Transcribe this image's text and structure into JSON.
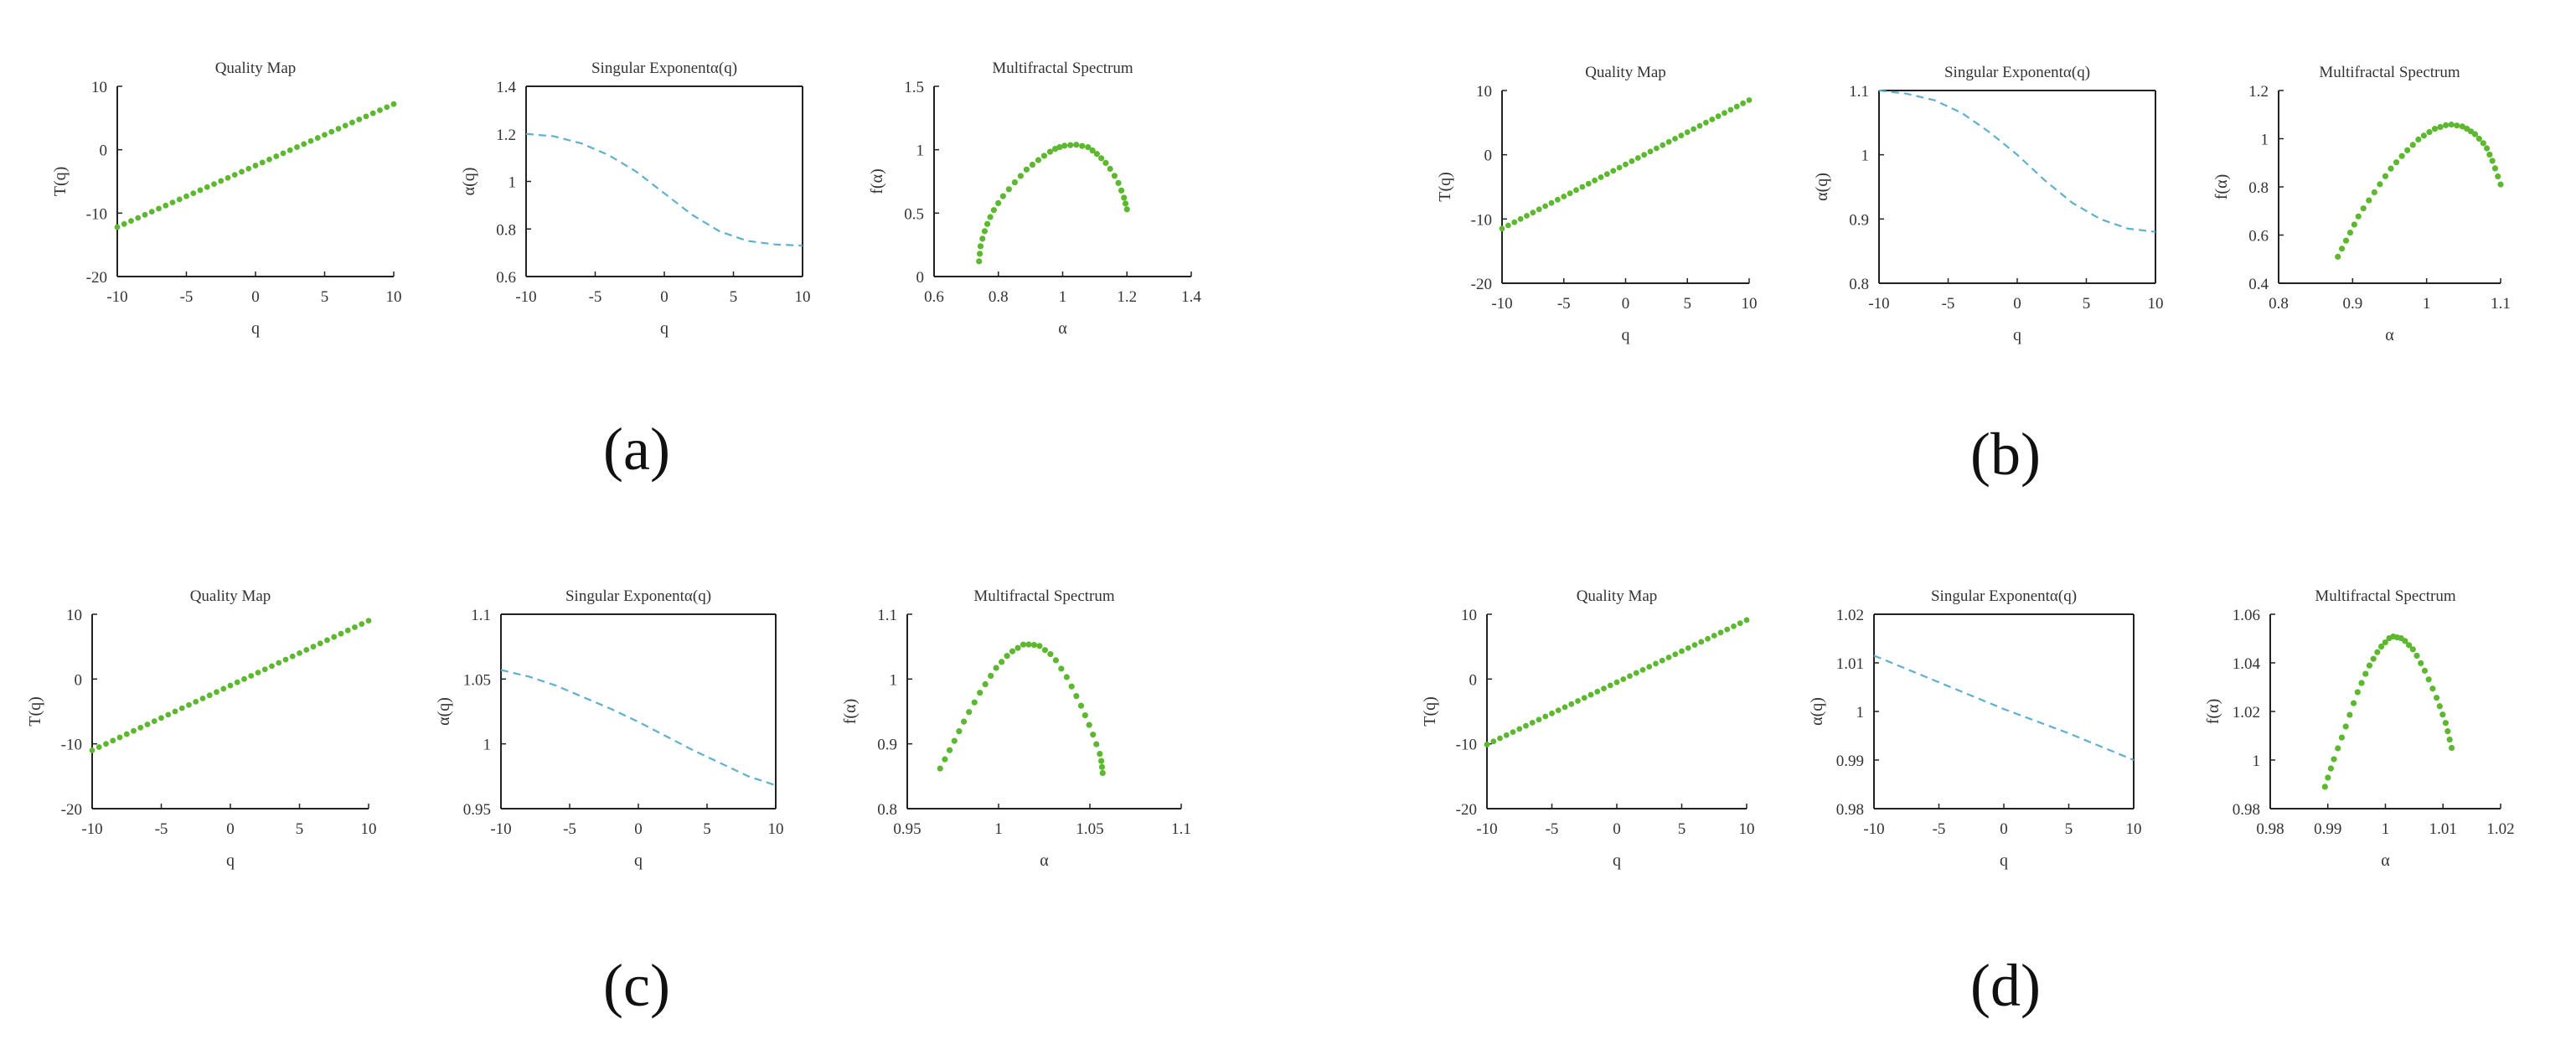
{
  "figure": {
    "panel_labels": [
      "(a)",
      "(b)",
      "(c)",
      "(d)"
    ]
  },
  "colors": {
    "green": "#5cb82e",
    "cyan": "#5fb0cf",
    "axis": "#222222"
  },
  "chart_data": [
    {
      "panel": "a",
      "type": "scatter",
      "style": "dots",
      "title": "Quality Map",
      "xlabel": "q",
      "ylabel": "T(q)",
      "xlim": [
        -10,
        10
      ],
      "ylim": [
        -20,
        10
      ],
      "xticks": [
        -10,
        -5,
        0,
        5,
        10
      ],
      "yticks": [
        -20,
        -10,
        0,
        10
      ],
      "yticklabels": [
        "-20",
        "-10",
        "0",
        "10"
      ],
      "box": false,
      "series": [
        {
          "x": [
            -10,
            10
          ],
          "y": [
            -12.2,
            7.2
          ]
        }
      ]
    },
    {
      "panel": "a",
      "type": "line",
      "style": "dashed",
      "title": "Singular Exponentα(q)",
      "xlabel": "q",
      "ylabel": "α(q)",
      "xlim": [
        -10,
        10
      ],
      "ylim": [
        0.6,
        1.4
      ],
      "xticks": [
        -10,
        -5,
        0,
        5,
        10
      ],
      "yticks": [
        0.6,
        0.8,
        1,
        1.2,
        1.4
      ],
      "yticklabels": [
        "0.6",
        "0.8",
        "1",
        "1.2",
        "1.4"
      ],
      "box": true,
      "series": [
        {
          "x": [
            -10,
            -8,
            -6,
            -4,
            -2,
            0,
            2,
            4,
            6,
            8,
            10
          ],
          "y": [
            1.2,
            1.19,
            1.16,
            1.11,
            1.04,
            0.95,
            0.86,
            0.79,
            0.75,
            0.735,
            0.73
          ]
        }
      ]
    },
    {
      "panel": "a",
      "type": "scatter",
      "style": "dots",
      "title": "Multifractal Spectrum",
      "xlabel": "α",
      "ylabel": "f(α)",
      "xlim": [
        0.6,
        1.4
      ],
      "ylim": [
        0,
        1.5
      ],
      "xticks": [
        0.6,
        0.8,
        1,
        1.2,
        1.4
      ],
      "yticks": [
        0,
        0.5,
        1,
        1.5
      ],
      "yticklabels": [
        "0",
        "0.5",
        "1",
        "1.5"
      ],
      "box": false,
      "series": [
        {
          "x": [
            0.74,
            0.745,
            0.76,
            0.78,
            0.81,
            0.85,
            0.89,
            0.93,
            0.97,
            1.0,
            1.04,
            1.08,
            1.11,
            1.14,
            1.17,
            1.19,
            1.2
          ],
          "y": [
            0.12,
            0.25,
            0.38,
            0.5,
            0.62,
            0.74,
            0.85,
            0.93,
            1.0,
            1.03,
            1.04,
            1.02,
            0.96,
            0.88,
            0.76,
            0.63,
            0.53
          ]
        }
      ]
    },
    {
      "panel": "b",
      "type": "scatter",
      "style": "dots",
      "title": "Quality Map",
      "xlabel": "q",
      "ylabel": "T(q)",
      "xlim": [
        -10,
        10
      ],
      "ylim": [
        -20,
        10
      ],
      "xticks": [
        -10,
        -5,
        0,
        5,
        10
      ],
      "yticks": [
        -20,
        -10,
        0,
        10
      ],
      "yticklabels": [
        "-20",
        "-10",
        "0",
        "10"
      ],
      "box": false,
      "series": [
        {
          "x": [
            -10,
            10
          ],
          "y": [
            -11.5,
            8.5
          ]
        }
      ]
    },
    {
      "panel": "b",
      "type": "line",
      "style": "dashed",
      "title": "Singular Exponentα(q)",
      "xlabel": "q",
      "ylabel": "α(q)",
      "xlim": [
        -10,
        10
      ],
      "ylim": [
        0.8,
        1.1
      ],
      "xticks": [
        -10,
        -5,
        0,
        5,
        10
      ],
      "yticks": [
        0.8,
        0.9,
        1,
        1.1
      ],
      "yticklabels": [
        "0.8",
        "0.9",
        "1",
        "1.1"
      ],
      "box": true,
      "series": [
        {
          "x": [
            -10,
            -8,
            -6,
            -4,
            -2,
            0,
            2,
            4,
            6,
            8,
            10
          ],
          "y": [
            1.1,
            1.095,
            1.085,
            1.065,
            1.035,
            1.0,
            0.96,
            0.925,
            0.9,
            0.885,
            0.88
          ]
        }
      ]
    },
    {
      "panel": "b",
      "type": "scatter",
      "style": "dots",
      "title": "Multifractal Spectrum",
      "xlabel": "α",
      "ylabel": "f(α)",
      "xlim": [
        0.8,
        1.1
      ],
      "ylim": [
        0.4,
        1.2
      ],
      "xticks": [
        0.8,
        0.9,
        1,
        1.1
      ],
      "yticks": [
        0.4,
        0.6,
        0.8,
        1,
        1.2
      ],
      "yticklabels": [
        "0.4",
        "0.6",
        "0.8",
        "1",
        "1.2"
      ],
      "box": false,
      "series": [
        {
          "x": [
            0.88,
            0.895,
            0.91,
            0.93,
            0.95,
            0.97,
            0.99,
            1.01,
            1.03,
            1.05,
            1.065,
            1.08,
            1.09,
            1.1
          ],
          "y": [
            0.51,
            0.6,
            0.69,
            0.78,
            0.87,
            0.94,
            1.0,
            1.04,
            1.06,
            1.05,
            1.02,
            0.97,
            0.9,
            0.81
          ]
        }
      ]
    },
    {
      "panel": "c",
      "type": "scatter",
      "style": "dots",
      "title": "Quality Map",
      "xlabel": "q",
      "ylabel": "T(q)",
      "xlim": [
        -10,
        10
      ],
      "ylim": [
        -20,
        10
      ],
      "xticks": [
        -10,
        -5,
        0,
        5,
        10
      ],
      "yticks": [
        -20,
        -10,
        0,
        10
      ],
      "yticklabels": [
        "-20",
        "-10",
        "0",
        "10"
      ],
      "box": false,
      "series": [
        {
          "x": [
            -10,
            10
          ],
          "y": [
            -11,
            9
          ]
        }
      ]
    },
    {
      "panel": "c",
      "type": "line",
      "style": "dashed",
      "title": "Singular Exponentα(q)",
      "xlabel": "q",
      "ylabel": "α(q)",
      "xlim": [
        -10,
        10
      ],
      "ylim": [
        0.95,
        1.1
      ],
      "xticks": [
        -10,
        -5,
        0,
        5,
        10
      ],
      "yticks": [
        0.95,
        1,
        1.05,
        1.1
      ],
      "yticklabels": [
        "0.95",
        "1",
        "1.05",
        "1.1"
      ],
      "box": true,
      "series": [
        {
          "x": [
            -10,
            -8,
            -6,
            -4,
            -2,
            0,
            2,
            4,
            6,
            8,
            10
          ],
          "y": [
            1.057,
            1.052,
            1.045,
            1.036,
            1.027,
            1.017,
            1.006,
            0.995,
            0.985,
            0.975,
            0.968
          ]
        }
      ]
    },
    {
      "panel": "c",
      "type": "scatter",
      "style": "dots",
      "title": "Multifractal Spectrum",
      "xlabel": "α",
      "ylabel": "f(α)",
      "xlim": [
        0.95,
        1.1
      ],
      "ylim": [
        0.8,
        1.1
      ],
      "xticks": [
        0.95,
        1,
        1.05,
        1.1
      ],
      "yticks": [
        0.8,
        0.9,
        1,
        1.1
      ],
      "yticklabels": [
        "0.8",
        "0.9",
        "1",
        "1.1"
      ],
      "box": false,
      "series": [
        {
          "x": [
            0.968,
            0.975,
            0.982,
            0.99,
            0.998,
            1.006,
            1.014,
            1.022,
            1.03,
            1.038,
            1.045,
            1.051,
            1.056,
            1.057
          ],
          "y": [
            0.862,
            0.9,
            0.94,
            0.98,
            1.015,
            1.04,
            1.054,
            1.052,
            1.035,
            1.0,
            0.96,
            0.92,
            0.88,
            0.855
          ]
        }
      ]
    },
    {
      "panel": "d",
      "type": "scatter",
      "style": "dots",
      "title": "Quality Map",
      "xlabel": "q",
      "ylabel": "T(q)",
      "xlim": [
        -10,
        10
      ],
      "ylim": [
        -20,
        10
      ],
      "xticks": [
        -10,
        -5,
        0,
        5,
        10
      ],
      "yticks": [
        -20,
        -10,
        0,
        10
      ],
      "yticklabels": [
        "-20",
        "-10",
        "0",
        "10"
      ],
      "box": false,
      "series": [
        {
          "x": [
            -10,
            10
          ],
          "y": [
            -10.1,
            9.1
          ]
        }
      ]
    },
    {
      "panel": "d",
      "type": "line",
      "style": "dashed",
      "title": "Singular Exponentα(q)",
      "xlabel": "q",
      "ylabel": "α(q)",
      "xlim": [
        -10,
        10
      ],
      "ylim": [
        0.98,
        1.02
      ],
      "xticks": [
        -10,
        -5,
        0,
        5,
        10
      ],
      "yticks": [
        0.98,
        0.99,
        1,
        1.01,
        1.02
      ],
      "yticklabels": [
        "0.98",
        "0.99",
        "1",
        "1.01",
        "1.02"
      ],
      "box": true,
      "series": [
        {
          "x": [
            -10,
            -5,
            0,
            5,
            10
          ],
          "y": [
            1.0115,
            1.006,
            1.0005,
            0.9955,
            0.99
          ]
        }
      ]
    },
    {
      "panel": "d",
      "type": "scatter",
      "style": "dots",
      "title": "Multifractal Spectrum",
      "xlabel": "α",
      "ylabel": "f(α)",
      "xlim": [
        0.98,
        1.02
      ],
      "ylim": [
        0.98,
        1.06
      ],
      "xticks": [
        0.98,
        0.99,
        1,
        1.01,
        1.02
      ],
      "yticks": [
        0.98,
        1,
        1.02,
        1.04,
        1.06
      ],
      "yticklabels": [
        "0.98",
        "1",
        "1.02",
        "1.04",
        "1.06"
      ],
      "box": false,
      "series": [
        {
          "x": [
            0.9895,
            0.991,
            0.993,
            0.995,
            0.997,
            0.999,
            1.001,
            1.003,
            1.005,
            1.007,
            1.009,
            1.0105,
            1.0115
          ],
          "y": [
            0.989,
            1.0,
            1.013,
            1.027,
            1.038,
            1.046,
            1.051,
            1.05,
            1.045,
            1.036,
            1.025,
            1.015,
            1.005
          ]
        }
      ]
    }
  ]
}
